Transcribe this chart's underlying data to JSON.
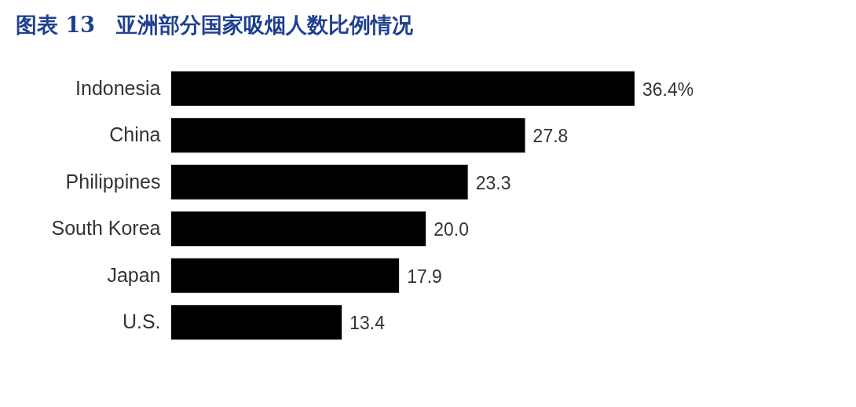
{
  "chart_data": {
    "type": "bar",
    "orientation": "horizontal",
    "title": "图表 13　亚洲部分国家吸烟人数比例情况",
    "categories": [
      "Indonesia",
      "China",
      "Philippines",
      "South Korea",
      "Japan",
      "U.S."
    ],
    "values": [
      36.4,
      27.8,
      23.3,
      20.0,
      17.9,
      13.4
    ],
    "value_labels": [
      "36.4%",
      "27.8",
      "23.3",
      "20.0",
      "17.9",
      "13.4"
    ],
    "color": "#000000"
  }
}
